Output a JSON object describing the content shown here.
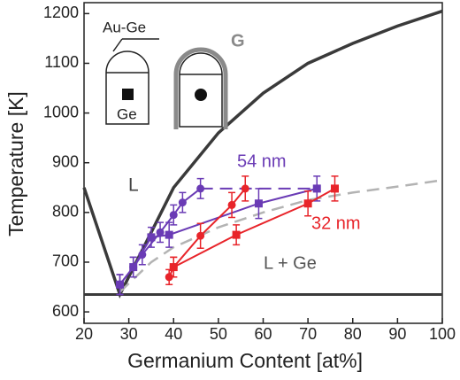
{
  "chart_data": {
    "type": "line",
    "x_label": "Germanium Content [at%]",
    "y_label": "Temperature [K]",
    "xlim": [
      20,
      100
    ],
    "ylim": [
      577,
      1222
    ],
    "xticks": [
      20,
      30,
      40,
      50,
      60,
      70,
      80,
      90,
      100
    ],
    "yticks": [
      600,
      700,
      800,
      900,
      1000,
      1100,
      1200
    ],
    "grid": false,
    "series": [
      {
        "color": "#3a3a3a",
        "width": 3.5,
        "dashed": false,
        "marker": "none",
        "x": [
          20,
          28,
          35,
          40,
          50,
          60,
          70,
          80,
          90,
          100
        ],
        "values": [
          850,
          635,
          760,
          850,
          960,
          1040,
          1100,
          1140,
          1175,
          1205
        ]
      },
      {
        "color": "#3a3a3a",
        "width": 3,
        "dashed": false,
        "marker": "none",
        "x": [
          20,
          100
        ],
        "values": [
          635,
          635
        ]
      },
      {
        "color": "#b3b3b3",
        "width": 2.5,
        "dashed": true,
        "marker": "none",
        "x": [
          28,
          35,
          40,
          50,
          60,
          70,
          80,
          90,
          100
        ],
        "values": [
          640,
          700,
          730,
          770,
          800,
          825,
          840,
          852,
          865
        ]
      },
      {
        "color": "#6a3bb5",
        "width": 2,
        "dashed": true,
        "marker": "none",
        "x": [
          46,
          72
        ],
        "values": [
          848,
          848
        ]
      },
      {
        "color": "#6a3bb5",
        "width": 2,
        "dashed": false,
        "marker": "circle",
        "x": [
          28,
          31,
          33,
          37,
          40,
          42,
          46
        ],
        "values": [
          655,
          690,
          715,
          760,
          795,
          820,
          848
        ],
        "errors": [
          20,
          20,
          20,
          20,
          20,
          20,
          20
        ]
      },
      {
        "color": "#6a3bb5",
        "width": 2,
        "dashed": false,
        "marker": "square",
        "x": [
          28,
          31,
          35,
          39,
          59,
          72
        ],
        "values": [
          655,
          690,
          750,
          755,
          818,
          848
        ],
        "errors": [
          20,
          20,
          20,
          25,
          30,
          25
        ]
      },
      {
        "color": "#e8242a",
        "width": 2,
        "dashed": false,
        "marker": "circle",
        "x": [
          39,
          40,
          46,
          53,
          56
        ],
        "values": [
          670,
          690,
          753,
          815,
          848
        ],
        "errors": [
          15,
          20,
          25,
          25,
          25
        ]
      },
      {
        "color": "#e8242a",
        "width": 2,
        "dashed": false,
        "marker": "square",
        "x": [
          40,
          54,
          70,
          76
        ],
        "values": [
          690,
          755,
          818,
          848
        ],
        "errors": [
          20,
          20,
          25,
          25
        ]
      }
    ],
    "annotations": {
      "l": "L",
      "l_ge": "L + Ge",
      "nm54": "54 nm",
      "nm32": "32 nm",
      "au_ge": "Au-Ge",
      "ge": "Ge",
      "g": "G"
    }
  }
}
